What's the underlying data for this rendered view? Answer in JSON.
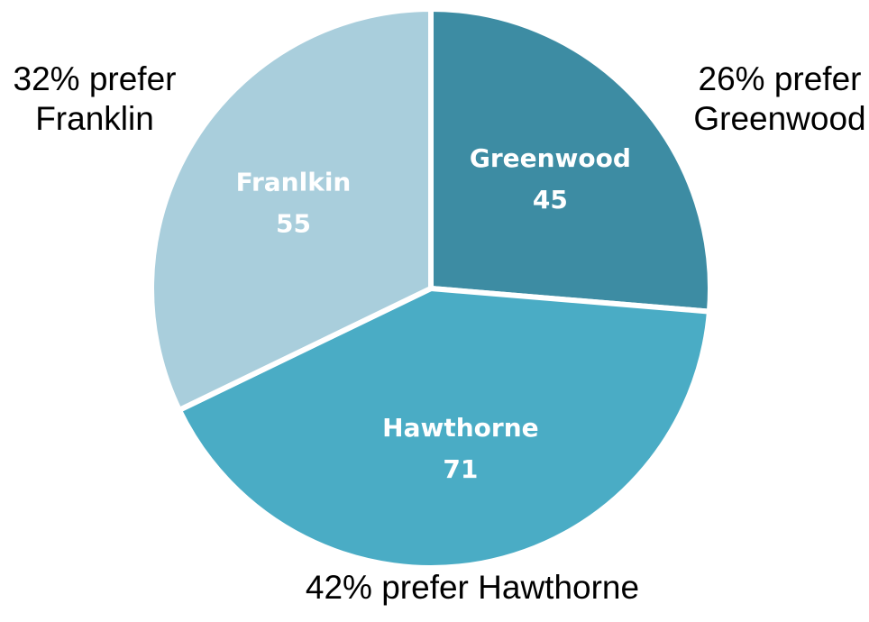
{
  "chart_data": {
    "type": "pie",
    "slices": [
      {
        "label": "Greenwood",
        "value": 45,
        "percent_label": "26% prefer Greenwood",
        "callout_lines": [
          "26% prefer",
          "Greenwood"
        ],
        "color": "#3d8ca3"
      },
      {
        "label": "Hawthorne",
        "value": 71,
        "percent_label": "42% prefer Hawthorne",
        "callout_lines": [
          "42% prefer Hawthorne"
        ],
        "color": "#4aacc5"
      },
      {
        "label": "Franlkin",
        "value": 55,
        "percent_label": "32% prefer Franklin",
        "callout_lines": [
          "32% prefer",
          "Franklin"
        ],
        "color": "#a9cedc"
      }
    ],
    "start_direction": "top",
    "direction": "clockwise",
    "slice_separator_color": "#ffffff"
  }
}
